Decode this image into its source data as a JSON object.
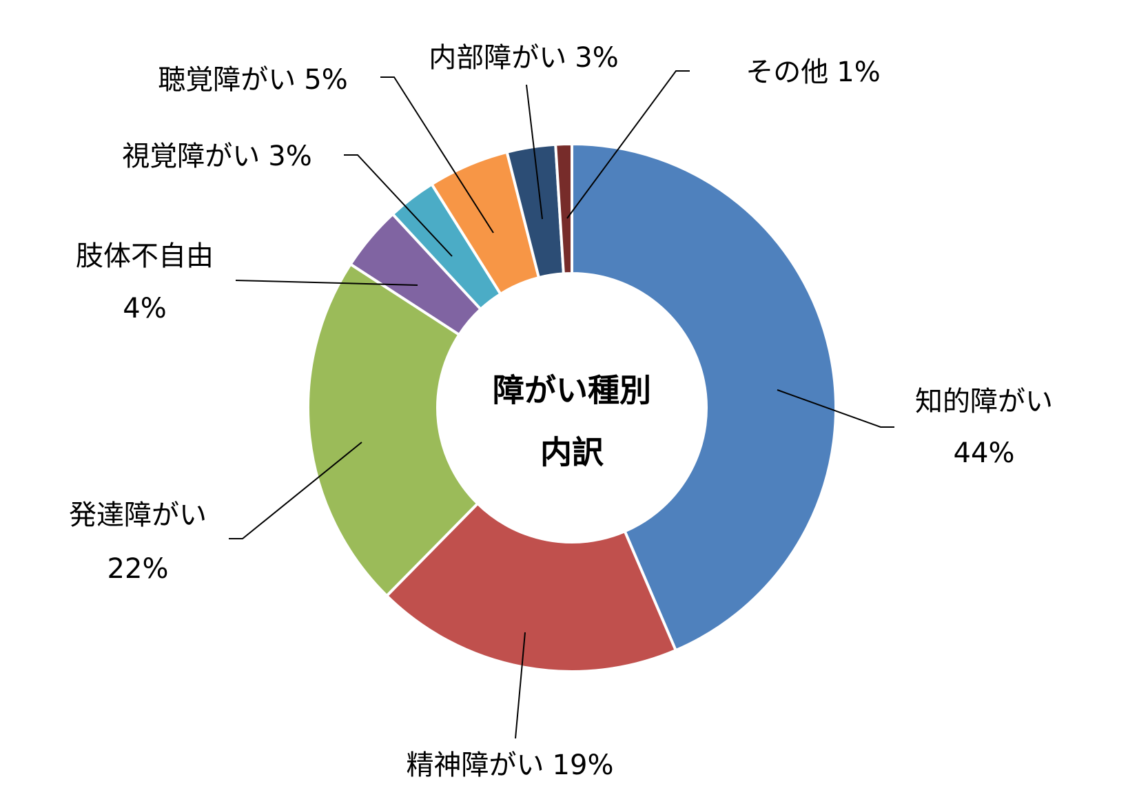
{
  "chart_data": {
    "type": "donut",
    "center_text": [
      "障がい種別",
      "内訳"
    ],
    "categories": [
      "知的障がい",
      "精神障がい",
      "発達障がい",
      "肢体不自由",
      "視覚障がい",
      "聴覚障がい",
      "内部障がい",
      "その他"
    ],
    "values": [
      44,
      19,
      22,
      4,
      3,
      5,
      3,
      1
    ],
    "value_labels": [
      "44%",
      "19%",
      "22%",
      "4%",
      "3%",
      "5%",
      "3%",
      "1%"
    ],
    "colors": [
      "#4F81BD",
      "#C0504D",
      "#9BBB59",
      "#8064A2",
      "#4BACC6",
      "#F79646",
      "#2C4D75",
      "#772C2A"
    ]
  }
}
